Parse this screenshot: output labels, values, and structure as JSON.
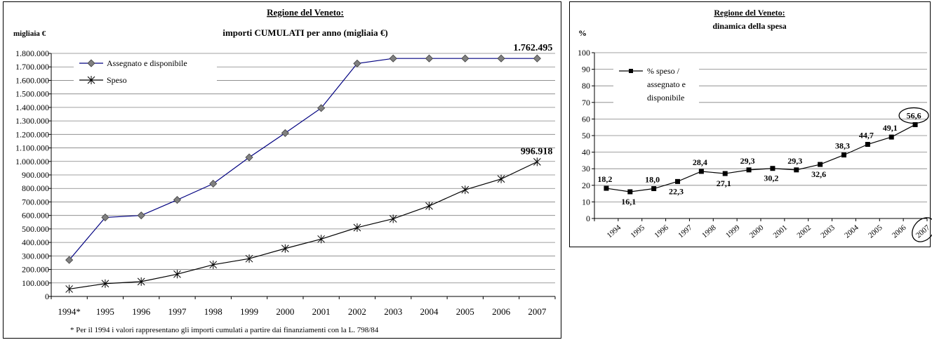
{
  "chart_data": [
    {
      "type": "line",
      "title_line1": "Regione del Veneto:",
      "title_line2": "importi CUMULATI per anno (migliaia €)",
      "ylabel": "migliaia €",
      "categories": [
        "1994*",
        "1995",
        "1996",
        "1997",
        "1998",
        "1999",
        "2000",
        "2001",
        "2002",
        "2003",
        "2004",
        "2005",
        "2006",
        "2007"
      ],
      "ylim": [
        0,
        1800000
      ],
      "ytick_labels": [
        "0",
        "100.000",
        "200.000",
        "300.000",
        "400.000",
        "500.000",
        "600.000",
        "700.000",
        "800.000",
        "900.000",
        "1.000.000",
        "1.100.000",
        "1.200.000",
        "1.300.000",
        "1.400.000",
        "1.500.000",
        "1.600.000",
        "1.700.000",
        "1.800.000"
      ],
      "grid": true,
      "legend_position": "top-left",
      "series": [
        {
          "name": "Assegnato e disponibile",
          "color": "#000080",
          "marker": "diamond",
          "values": [
            270000,
            585000,
            600000,
            715000,
            835000,
            1030000,
            1210000,
            1395000,
            1725000,
            1762495,
            1762495,
            1762495,
            1762495,
            1762495
          ]
        },
        {
          "name": "Speso",
          "color": "#000000",
          "marker": "asterisk",
          "values": [
            55000,
            95000,
            110000,
            165000,
            235000,
            280000,
            355000,
            425000,
            510000,
            575000,
            670000,
            790000,
            870000,
            996918
          ]
        }
      ],
      "annotations": [
        {
          "text": "1.762.495",
          "series": 0,
          "index": 13
        },
        {
          "text": "996.918",
          "series": 1,
          "index": 13
        }
      ],
      "footnote": "* Per il 1994 i valori rappresentano gli importi cumulati a partire dai finanziamenti con la L. 798/84"
    },
    {
      "type": "line",
      "title_line1": "Regione del Veneto:",
      "title_line2": "dinamica della spesa",
      "ylabel": "%",
      "categories": [
        "1994",
        "1995",
        "1996",
        "1997",
        "1998",
        "1999",
        "2000",
        "2001",
        "2002",
        "2003",
        "2004",
        "2005",
        "2006",
        "2007"
      ],
      "ylim": [
        0,
        100
      ],
      "ytick_labels": [
        "0",
        "10",
        "20",
        "30",
        "40",
        "50",
        "60",
        "70",
        "80",
        "90",
        "100"
      ],
      "grid": true,
      "legend_position": "top-left",
      "series": [
        {
          "name": "% speso / assegnato e disponibile",
          "legend_lines": [
            "% speso /",
            "assegnato e",
            "disponibile"
          ],
          "color": "#000000",
          "marker": "square",
          "values": [
            18.2,
            16.1,
            18.0,
            22.3,
            28.4,
            27.1,
            29.3,
            30.2,
            29.3,
            32.6,
            38.3,
            44.7,
            49.1,
            56.6
          ],
          "data_labels": [
            "18,2",
            "16,1",
            "18,0",
            "22,3",
            "28,4",
            "27,1",
            "29,3",
            "30,2",
            "29,3",
            "32,6",
            "38,3",
            "44,7",
            "49,1",
            "56,6"
          ]
        }
      ],
      "highlighted": {
        "value_label": "56,6",
        "category": "2007"
      }
    }
  ]
}
